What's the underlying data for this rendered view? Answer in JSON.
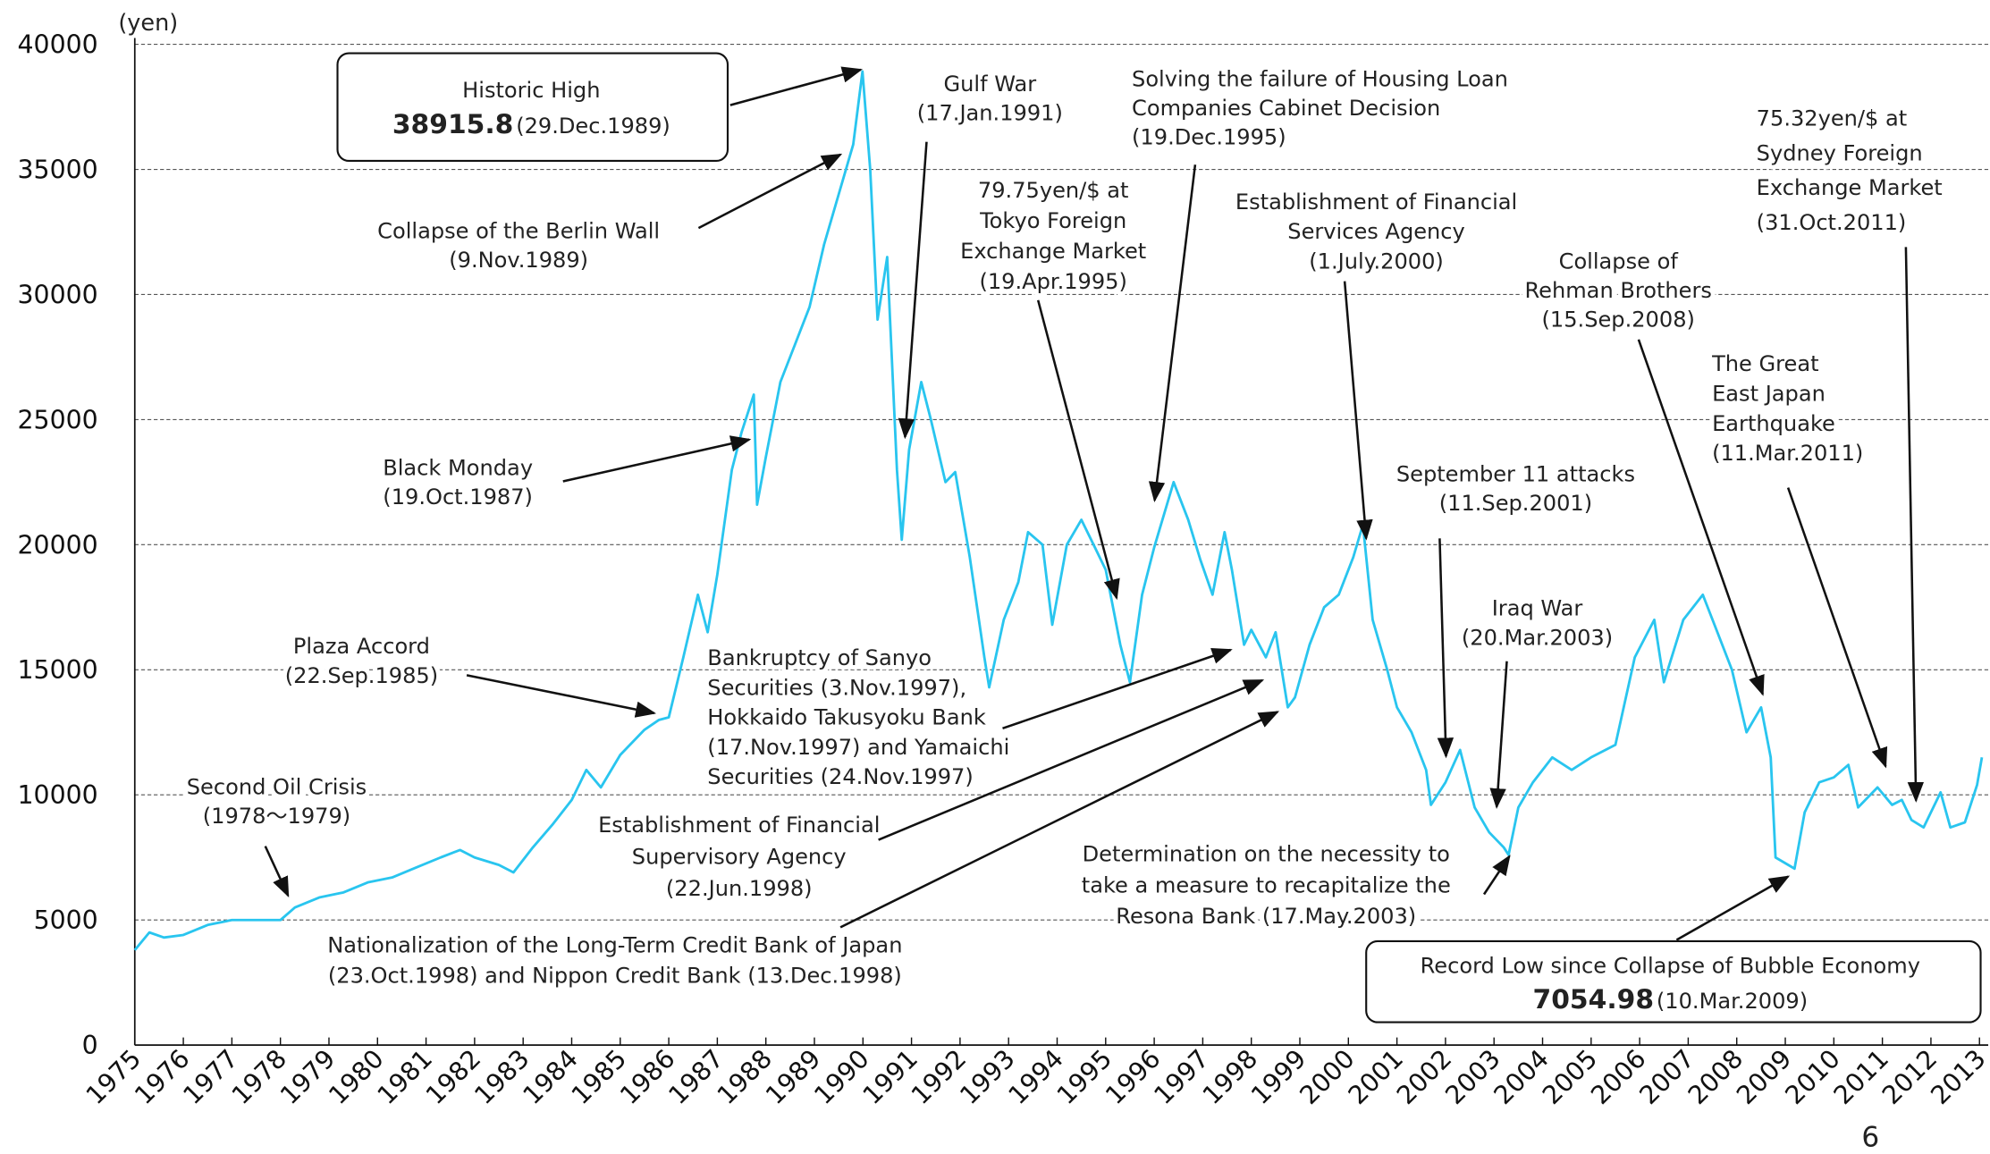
{
  "chart_data": {
    "type": "line",
    "y_label": "(yen)",
    "page_number": "6",
    "color": "#29c5ef",
    "xlim": [
      1975,
      2013.05
    ],
    "xticks": [
      1975,
      1976,
      1977,
      1978,
      1979,
      1980,
      1981,
      1982,
      1983,
      1984,
      1985,
      1986,
      1987,
      1988,
      1989,
      1990,
      1991,
      1992,
      1993,
      1994,
      1995,
      1996,
      1997,
      1998,
      1999,
      2000,
      2001,
      2002,
      2003,
      2004,
      2005,
      2006,
      2007,
      2008,
      2009,
      2010,
      2011,
      2012,
      2013
    ],
    "ylim": [
      0,
      40000
    ],
    "yticks": [
      0,
      5000,
      10000,
      15000,
      20000,
      25000,
      30000,
      35000,
      40000
    ],
    "grid": true,
    "x": [
      1975.0,
      1975.3,
      1975.6,
      1976,
      1976.5,
      1977,
      1977.5,
      1978,
      1978.3,
      1978.8,
      1979.3,
      1979.8,
      1980.3,
      1980.8,
      1981.3,
      1981.7,
      1982.0,
      1982.5,
      1982.8,
      1983.2,
      1983.6,
      1984.0,
      1984.3,
      1984.6,
      1985.0,
      1985.5,
      1985.8,
      1986.0,
      1986.3,
      1986.6,
      1986.8,
      1987.0,
      1987.3,
      1987.5,
      1987.75,
      1987.82,
      1988.0,
      1988.3,
      1988.6,
      1988.9,
      1989.2,
      1989.5,
      1989.8,
      1989.99,
      1990.15,
      1990.3,
      1990.5,
      1990.7,
      1990.8,
      1990.95,
      1991.2,
      1991.4,
      1991.7,
      1991.9,
      1992.2,
      1992.5,
      1992.6,
      1992.9,
      1993.2,
      1993.4,
      1993.7,
      1993.9,
      1994.2,
      1994.5,
      1994.8,
      1995.0,
      1995.3,
      1995.5,
      1995.75,
      1996.0,
      1996.4,
      1996.7,
      1996.95,
      1997.2,
      1997.45,
      1997.6,
      1997.85,
      1998.0,
      1998.3,
      1998.5,
      1998.75,
      1998.9,
      1999.2,
      1999.5,
      1999.8,
      2000.1,
      2000.3,
      2000.5,
      2000.8,
      2001.0,
      2001.3,
      2001.6,
      2001.7,
      2002.0,
      2002.3,
      2002.6,
      2002.9,
      2003.2,
      2003.3,
      2003.5,
      2003.8,
      2004.2,
      2004.6,
      2005.0,
      2005.5,
      2005.9,
      2006.3,
      2006.5,
      2006.9,
      2007.3,
      2007.6,
      2007.9,
      2008.2,
      2008.5,
      2008.7,
      2008.8,
      2009.19,
      2009.4,
      2009.7,
      2010.0,
      2010.3,
      2010.5,
      2010.9,
      2011.2,
      2011.4,
      2011.6,
      2011.85,
      2012.2,
      2012.4,
      2012.7,
      2012.95,
      2013.05
    ],
    "values": [
      3800,
      4500,
      4300,
      4400,
      4800,
      5000,
      5000,
      5000,
      5500,
      5900,
      6100,
      6500,
      6700,
      7100,
      7500,
      7800,
      7500,
      7200,
      6900,
      7900,
      8800,
      9800,
      11000,
      10300,
      11600,
      12600,
      13000,
      13100,
      15500,
      18000,
      16500,
      18800,
      23000,
      24500,
      26000,
      21600,
      23500,
      26500,
      28000,
      29500,
      32000,
      34000,
      36000,
      38915.8,
      35000,
      29000,
      31500,
      23000,
      20200,
      23800,
      26500,
      25000,
      22500,
      22900,
      19500,
      15500,
      14300,
      17000,
      18500,
      20500,
      20000,
      16800,
      20000,
      21000,
      19800,
      19000,
      16000,
      14500,
      18000,
      19900,
      22500,
      21000,
      19400,
      18000,
      20500,
      19000,
      16000,
      16600,
      15500,
      16500,
      13500,
      13900,
      16000,
      17500,
      18000,
      19500,
      20800,
      17000,
      15000,
      13500,
      12500,
      11000,
      9600,
      10500,
      11800,
      9500,
      8500,
      7900,
      7600,
      9500,
      10500,
      11500,
      11000,
      11500,
      12000,
      15500,
      17000,
      14500,
      17000,
      18000,
      16500,
      15000,
      12500,
      13500,
      11500,
      7500,
      7054.98,
      9300,
      10500,
      10700,
      11200,
      9500,
      10300,
      9600,
      9800,
      9000,
      8700,
      10100,
      8700,
      8900,
      10400,
      11500
    ],
    "annotations": [
      {
        "lines": [
          "Historic High"
        ],
        "value_label": "38915.8",
        "date": "(29.Dec.1989)"
      },
      {
        "lines": [
          "Collapse of the Berlin Wall",
          "(9.Nov.1989)"
        ]
      },
      {
        "lines": [
          "Gulf War",
          "(17.Jan.1991)"
        ]
      },
      {
        "lines": [
          "Solving the failure of Housing Loan",
          "Companies Cabinet Decision",
          "(19.Dec.1995)"
        ]
      },
      {
        "lines": [
          "79.75yen/$ at",
          "Tokyo Foreign",
          "Exchange Market",
          "(19.Apr.1995)"
        ]
      },
      {
        "lines": [
          "Establishment of Financial",
          "Services Agency",
          "(1.July.2000)"
        ]
      },
      {
        "lines": [
          "Collapse of",
          "Rehman Brothers",
          "(15.Sep.2008)"
        ]
      },
      {
        "lines": [
          "75.32yen/$ at",
          "Sydney Foreign",
          "Exchange Market",
          "(31.Oct.2011)"
        ]
      },
      {
        "lines": [
          "The Great",
          "East Japan",
          "Earthquake",
          "(11.Mar.2011)"
        ]
      },
      {
        "lines": [
          "September 11 attacks",
          "(11.Sep.2001)"
        ]
      },
      {
        "lines": [
          "Iraq War",
          "(20.Mar.2003)"
        ]
      },
      {
        "lines": [
          "Black Monday",
          "(19.Oct.1987)"
        ]
      },
      {
        "lines": [
          "Plaza Accord",
          "(22.Sep.1985)"
        ]
      },
      {
        "lines": [
          "Second Oil Crisis",
          "(1978〜1979)"
        ]
      },
      {
        "lines": [
          "Bankruptcy of Sanyo",
          "Securities (3.Nov.1997),",
          "Hokkaido Takusyoku Bank",
          "(17.Nov.1997) and Yamaichi",
          "Securities (24.Nov.1997)"
        ]
      },
      {
        "lines": [
          "Establishment of Financial",
          "Supervisory Agency",
          "(22.Jun.1998)"
        ]
      },
      {
        "lines": [
          "Nationalization of the Long-Term Credit Bank of Japan",
          "(23.Oct.1998) and Nippon Credit Bank (13.Dec.1998)"
        ]
      },
      {
        "lines": [
          "Determination on the necessity to",
          "take a measure to recapitalize the",
          "Resona Bank (17.May.2003)"
        ]
      },
      {
        "lines": [
          "Record Low since Collapse of Bubble Economy"
        ],
        "value_label": "7054.98",
        "date": "(10.Mar.2009)"
      }
    ]
  }
}
